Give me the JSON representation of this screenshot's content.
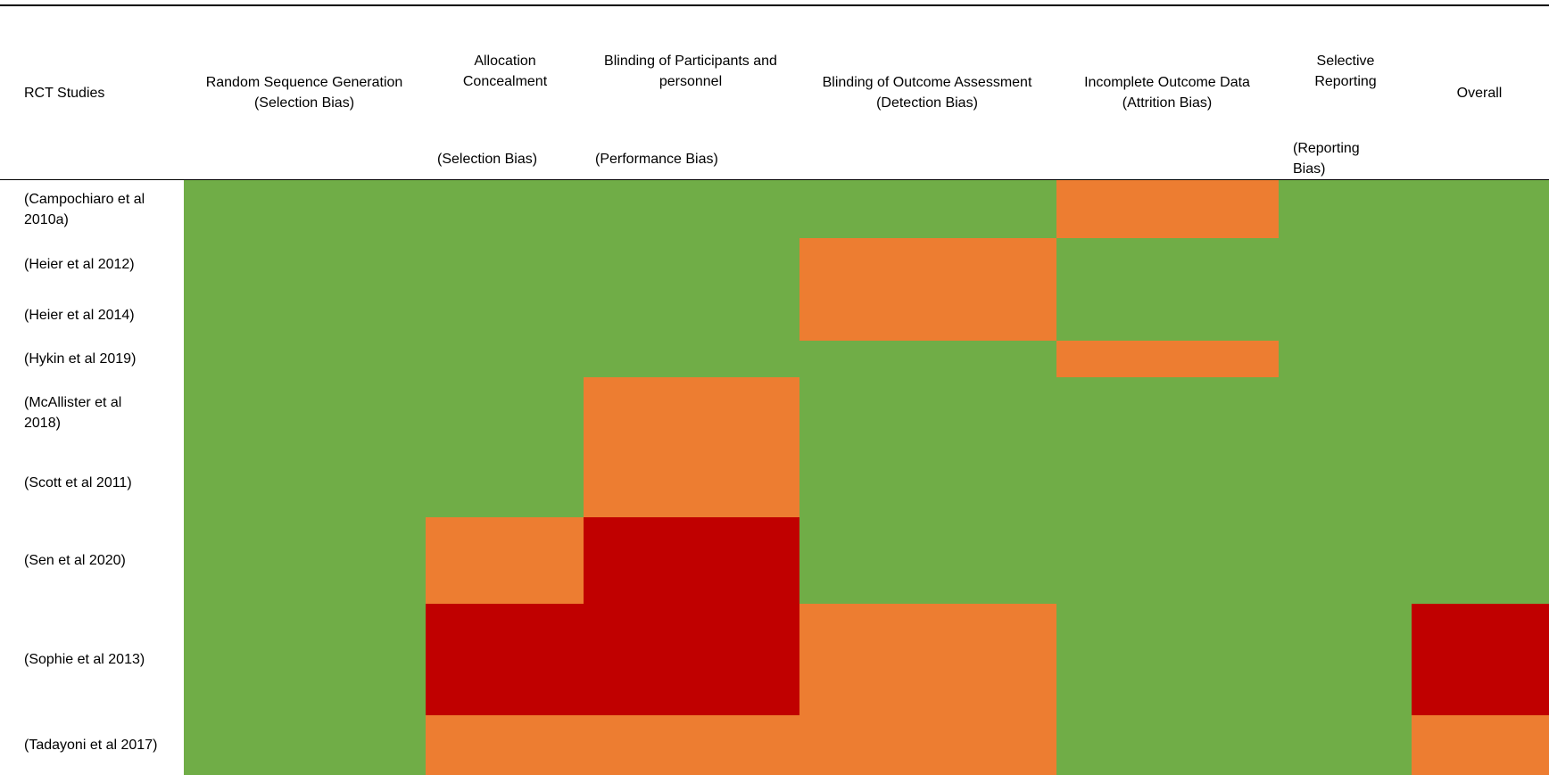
{
  "table": {
    "header_line1": {
      "studies": "RCT Studies",
      "random_seq": "Random Sequence Generation\n(Selection Bias)",
      "allocation": "Allocation\nConcealment",
      "blinding_participants": "Blinding of Participants and\npersonnel",
      "blinding_outcome": "Blinding of Outcome Assessment\n(Detection Bias)",
      "incomplete": "Incomplete Outcome Data\n(Attrition Bias)",
      "selective": "Selective\nReporting",
      "overall": "Overall"
    },
    "header_line2": {
      "allocation": "(Selection Bias)",
      "blinding_participants": "(Performance Bias)",
      "selective": "(Reporting\nBias)"
    },
    "colors": {
      "low": "#70ad47",
      "some": "#ed7d31",
      "high": "#c00000"
    },
    "rows": [
      {
        "study": "(Campochiaro et al\n2010a)",
        "ratings": [
          "low",
          "low",
          "low",
          "low",
          "some",
          "low",
          "low"
        ]
      },
      {
        "study": "(Heier et al 2012)",
        "ratings": [
          "low",
          "low",
          "low",
          "some",
          "low",
          "low",
          "low"
        ]
      },
      {
        "study": "(Heier et al 2014)",
        "ratings": [
          "low",
          "low",
          "low",
          "some",
          "low",
          "low",
          "low"
        ]
      },
      {
        "study": "(Hykin et al 2019)",
        "ratings": [
          "low",
          "low",
          "low",
          "low",
          "some",
          "low",
          "low"
        ]
      },
      {
        "study": "(McAllister et al\n2018)",
        "ratings": [
          "low",
          "low",
          "some",
          "low",
          "low",
          "low",
          "low"
        ]
      },
      {
        "study": "(Scott et al 2011)",
        "ratings": [
          "low",
          "low",
          "some",
          "low",
          "low",
          "low",
          "low"
        ]
      },
      {
        "study": "(Sen et al 2020)",
        "ratings": [
          "low",
          "some",
          "high",
          "low",
          "low",
          "low",
          "low"
        ]
      },
      {
        "study": "(Sophie et al 2013)",
        "ratings": [
          "low",
          "high",
          "high",
          "some",
          "low",
          "low",
          "high"
        ]
      },
      {
        "study": "(Tadayoni et al 2017)",
        "ratings": [
          "low",
          "some",
          "some",
          "some",
          "low",
          "low",
          "some"
        ]
      }
    ]
  }
}
